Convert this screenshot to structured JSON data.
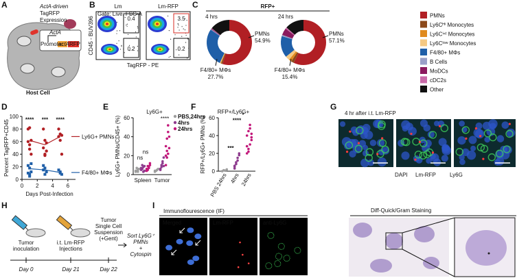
{
  "panel_a": {
    "letter": "A",
    "caption": [
      "ActA-driven",
      "TagRFP",
      "Expression"
    ],
    "gene": "ActA",
    "construct": [
      "Promoter",
      "actA",
      "RFP"
    ],
    "cell": "Host Cell"
  },
  "panel_b": {
    "letter": "B",
    "titles": [
      "Lm",
      "Lm-RFP"
    ],
    "gate": "Gate: Live, FSC-A",
    "ylabel": "CD45 - BUV396",
    "xlabel": "TagRFP - PE",
    "gates": [
      [
        0.4,
        0.2
      ],
      [
        3.5,
        0.2
      ]
    ]
  },
  "panel_c": {
    "letter": "C",
    "title": "RFP+",
    "categories": [
      "PMNs",
      "Ly6Cᴴⁱ Monocytes",
      "Ly6Cⁱⁿᵗ Monocytes",
      "Ly6Cˡᵒʷ Monocytes",
      "F4/80+ MΦs",
      "B Cells",
      "MoDCs",
      "cDC2s",
      "Other"
    ],
    "colors": [
      "#b11f24",
      "#8c4a1b",
      "#e08a1e",
      "#f5c983",
      "#1f5fa8",
      "#9aa0c8",
      "#8b1a5e",
      "#c96aa8",
      "#111111"
    ],
    "donuts": [
      {
        "title": "4 hrs",
        "values": [
          54.9,
          1,
          0.5,
          0.5,
          27.7,
          0.5,
          0.5,
          0.3,
          14.1
        ],
        "value_labels": [
          "54.9%",
          null,
          null,
          null,
          "27.7%",
          null,
          null,
          null,
          null
        ]
      },
      {
        "title": "24 hrs",
        "values": [
          57.1,
          2,
          2,
          3,
          15.4,
          1,
          5,
          1,
          13.5
        ],
        "value_labels": [
          "57.1%",
          null,
          null,
          null,
          "15.4%",
          null,
          null,
          null,
          null
        ]
      }
    ]
  },
  "panel_d": {
    "letter": "D",
    "ylabel": "Percent TagRFP+CD45",
    "xlabel": "Days Post-Infection",
    "xlim": [
      0,
      7
    ],
    "xticks": [
      0,
      2,
      4,
      6
    ],
    "ylim": [
      0,
      100
    ],
    "yticks": [
      0,
      20,
      40,
      60,
      80,
      100
    ],
    "mean_x": [
      1,
      3,
      5
    ],
    "annotations": [
      "****",
      "***",
      "****"
    ],
    "series": [
      {
        "name": "Ly6G+ PMNs",
        "color": "#b11f24",
        "x": [
          0.8,
          1,
          1.2,
          0.8,
          1,
          1.2,
          1,
          2.8,
          3,
          3.2,
          2.8,
          3,
          3.2,
          3,
          4.8,
          5,
          5.2,
          4.8,
          5,
          5.2
        ],
        "y": [
          80,
          82,
          62,
          60,
          48,
          40,
          55,
          80,
          62,
          58,
          50,
          40,
          45,
          38,
          80,
          72,
          70,
          68,
          62,
          40
        ],
        "means": [
          62,
          55,
          68
        ]
      },
      {
        "name": "F4/80+ MΦs",
        "color": "#1f5fa8",
        "x": [
          0.8,
          1,
          1.2,
          0.8,
          1,
          1.2,
          1,
          2.8,
          3,
          3.2,
          2.8,
          3,
          4.8,
          5,
          5.2,
          5
        ],
        "y": [
          22,
          18,
          12,
          10,
          8,
          25,
          5,
          22,
          18,
          12,
          15,
          8,
          15,
          10,
          8,
          12
        ],
        "means": [
          17,
          15,
          11
        ]
      }
    ]
  },
  "panel_e": {
    "letter": "E",
    "title": "Ly6G+",
    "ylabel": "Ly6G+ PMNs/CD45+ (%)",
    "ylim": [
      0,
      60
    ],
    "yticks": [
      0,
      20,
      40,
      60
    ],
    "categories": [
      "Spleen",
      "Tumor"
    ],
    "annotations": [
      "ns",
      "ns",
      "****"
    ],
    "series": [
      {
        "name": "PBS,24hrs",
        "color": "#9e9e9e",
        "values": [
          [
            3,
            4,
            5,
            6,
            4,
            7,
            3
          ],
          [
            3,
            4,
            5,
            6,
            4
          ]
        ]
      },
      {
        "name": "4hrs",
        "color": "#8e3c8e",
        "values": [
          [
            5,
            6,
            8,
            4,
            7,
            10,
            3,
            9
          ],
          [
            5,
            8,
            12,
            18,
            6,
            10,
            14,
            9
          ]
        ]
      },
      {
        "name": "24hrs",
        "color": "#c2187a",
        "values": [
          [
            6,
            5,
            8,
            12,
            4,
            9,
            7,
            10
          ],
          [
            10,
            18,
            22,
            28,
            30,
            38,
            45,
            40,
            20,
            25,
            52
          ]
        ]
      }
    ]
  },
  "panel_f": {
    "letter": "F",
    "title": "RFP+/Ly6G+",
    "ylabel": "RFP+/Ly6G+ PMNs (%)",
    "ylim": [
      0,
      60
    ],
    "yticks": [
      0,
      20,
      40,
      60
    ],
    "categories": [
      "PBS 24hrs",
      "4hrs",
      "24hrs"
    ],
    "colors": [
      "#9e9e9e",
      "#8e3c8e",
      "#c2187a"
    ],
    "annotations": [
      "***",
      "****",
      "*"
    ],
    "values": [
      [
        0,
        1,
        0.5,
        2,
        0,
        1
      ],
      [
        5,
        8,
        12,
        18,
        3,
        10,
        15,
        20,
        6
      ],
      [
        20,
        25,
        30,
        35,
        40,
        45,
        48,
        38,
        28,
        22,
        52,
        42
      ]
    ]
  },
  "panel_g": {
    "letter": "G",
    "title": "4 hr after i.t. Lm-RFP",
    "legend": [
      "DAPI",
      "Lm-RFP",
      "Ly6G"
    ]
  },
  "panel_h": {
    "letter": "H",
    "steps": [
      [
        "Tumor",
        "inoculation"
      ],
      [
        "i.t. Lm-RFP",
        "Injections"
      ],
      [
        "Tumor",
        "Single Cell",
        "Suspension",
        "(+Gent)"
      ]
    ],
    "days": [
      "Day 0",
      "Day 21",
      "Day 22"
    ],
    "final": [
      "Sort Ly6G⁺",
      "PMNs",
      "+",
      "Cytospin"
    ]
  },
  "panel_i": {
    "letter": "I",
    "if_title": "Immunoflourescence (IF)",
    "if_panels": [
      "Merged",
      "Lm-RFP",
      "anti-Ly6G"
    ],
    "stain_title": "Diff-Quick/Gram Staining"
  }
}
